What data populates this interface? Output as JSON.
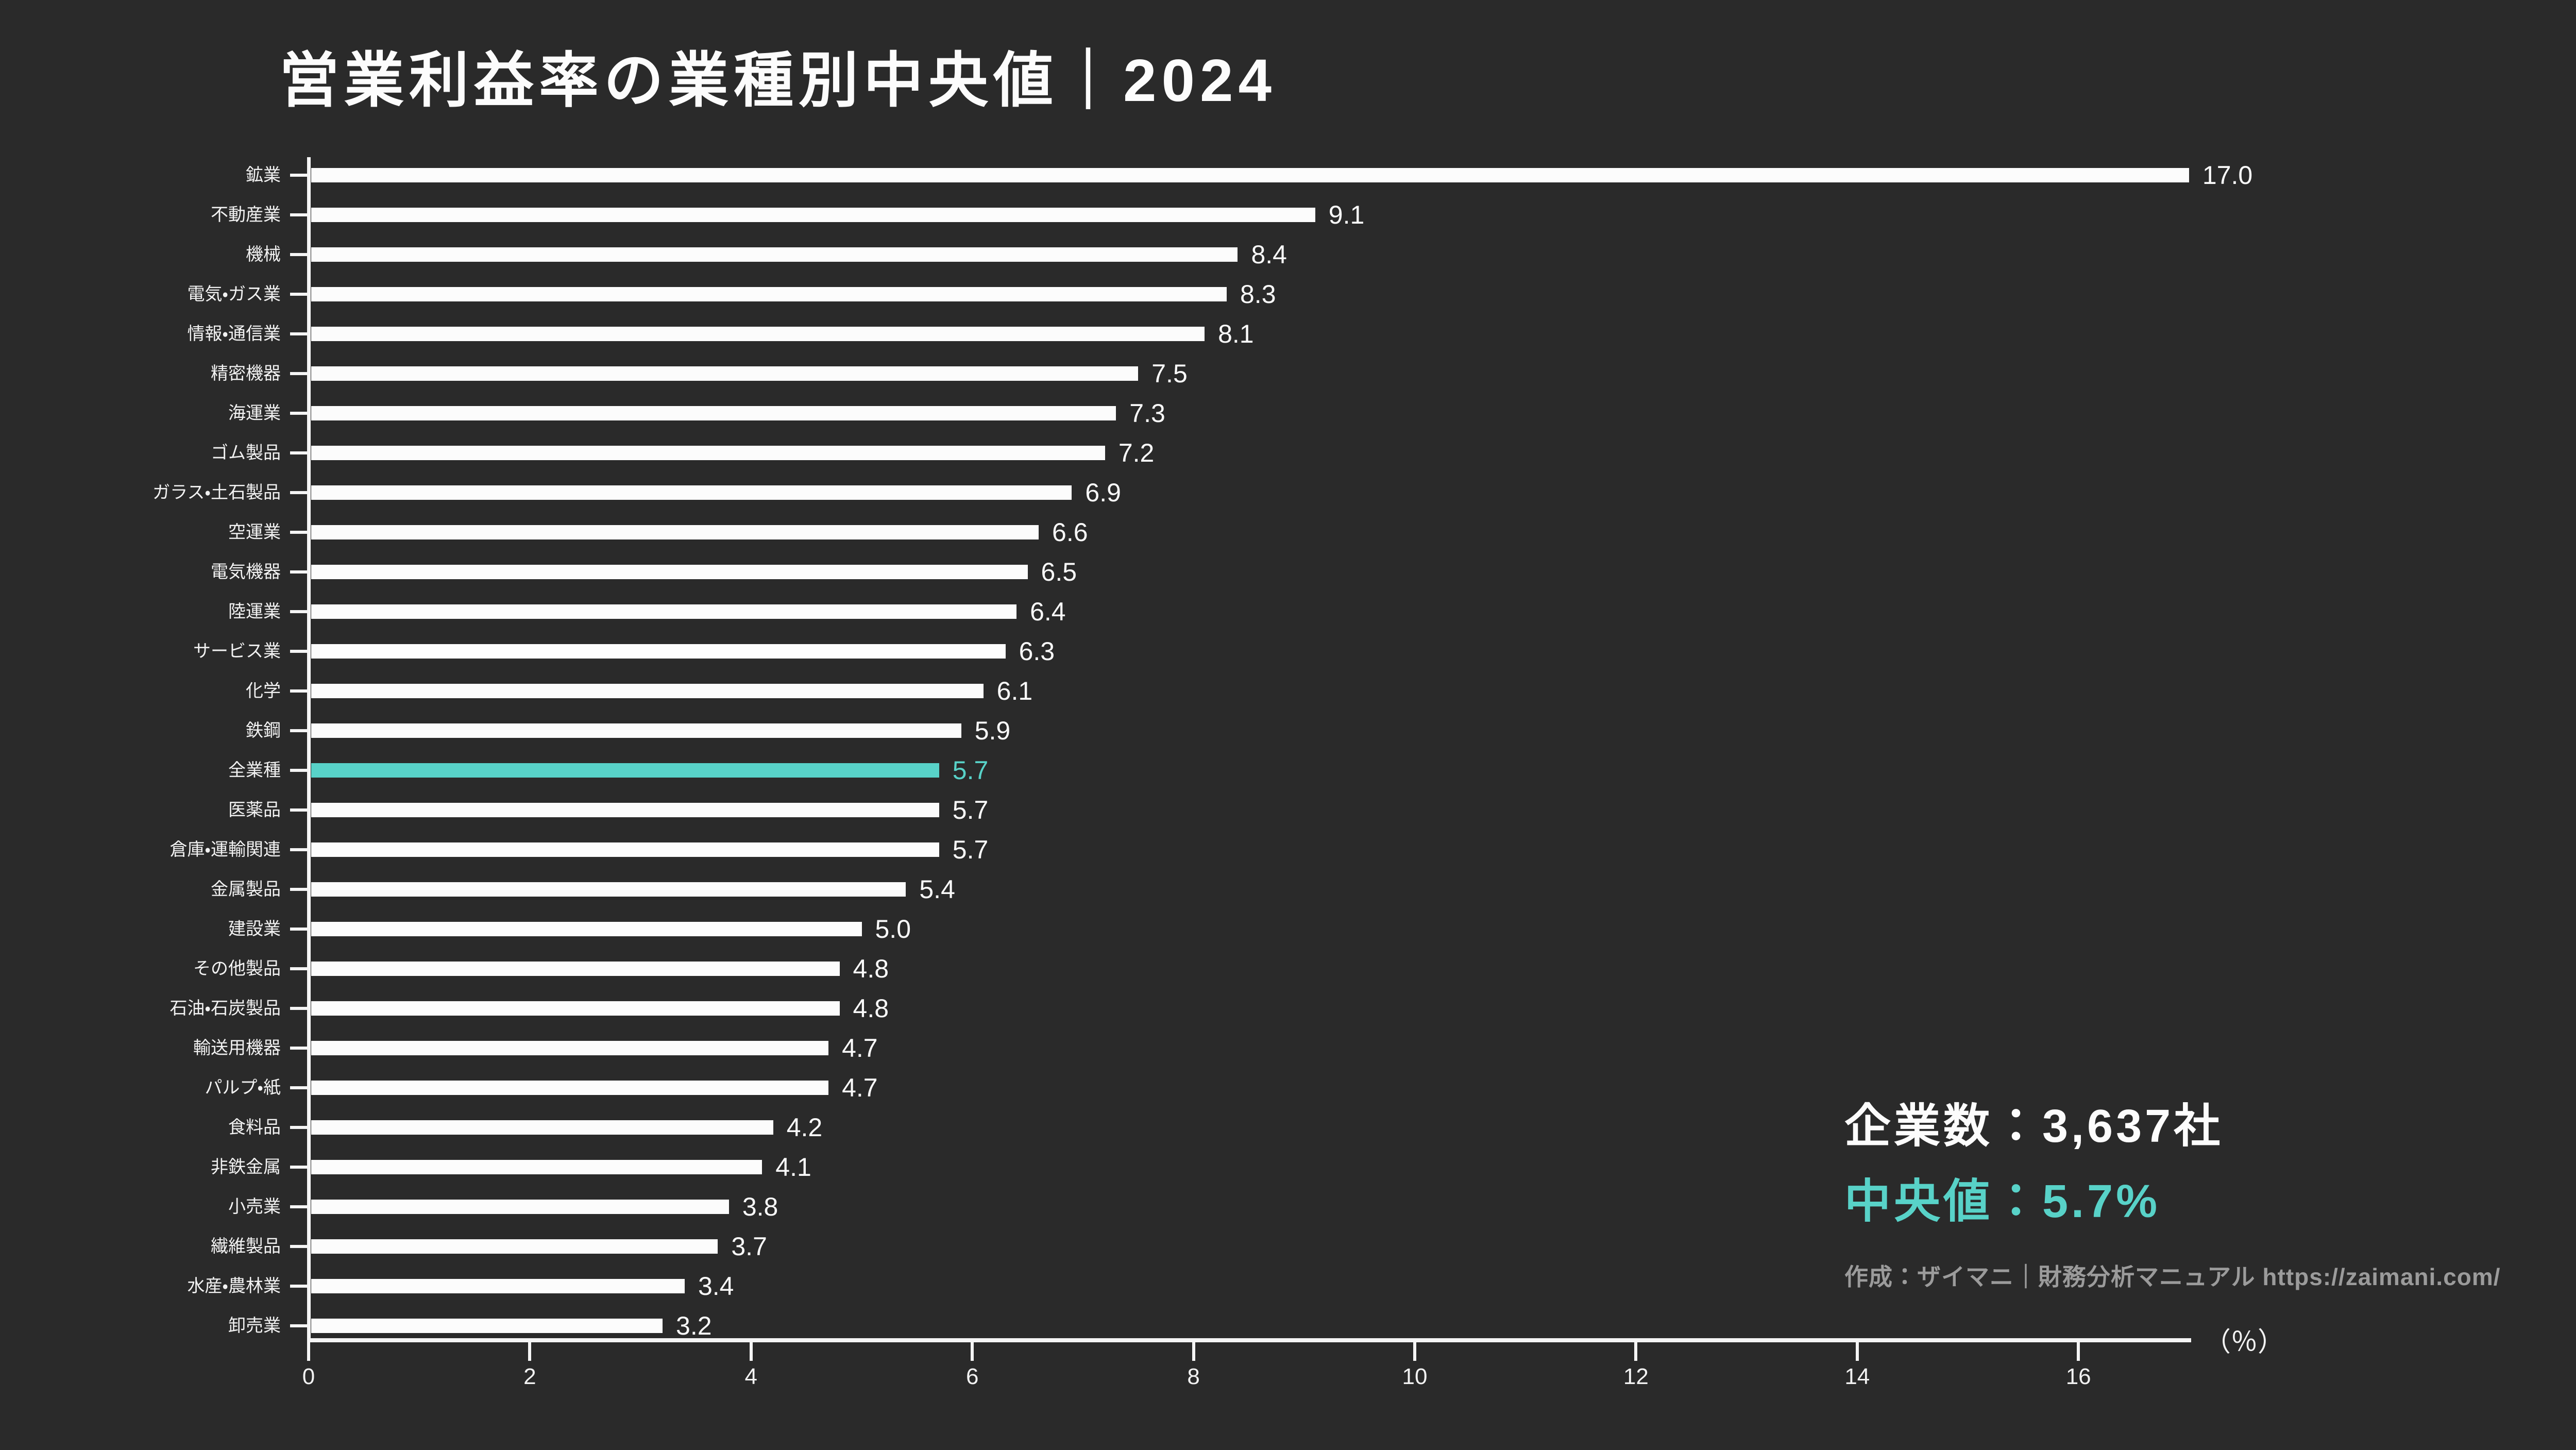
{
  "title": "営業利益率の業種別中央値｜2024",
  "chart_data": {
    "type": "bar",
    "orientation": "horizontal",
    "title": "営業利益率の業種別中央値｜2024",
    "xlabel": "（％）",
    "unit": "%",
    "xlim": [
      0,
      17
    ],
    "x_ticks": [
      0,
      2,
      4,
      6,
      8,
      10,
      12,
      14,
      16
    ],
    "grid": false,
    "highlight_category": "全業種",
    "categories": [
      "鉱業",
      "不動産業",
      "機械",
      "電気・ガス業",
      "情報・通信業",
      "精密機器",
      "海運業",
      "ゴム製品",
      "ガラス・土石製品",
      "空運業",
      "電気機器",
      "陸運業",
      "サービス業",
      "化学",
      "鉄鋼",
      "全業種",
      "医薬品",
      "倉庫・運輸関連",
      "金属製品",
      "建設業",
      "その他製品",
      "石油・石炭製品",
      "輸送用機器",
      "パルプ・紙",
      "食料品",
      "非鉄金属",
      "小売業",
      "繊維製品",
      "水産・農林業",
      "卸売業"
    ],
    "values": [
      17.0,
      9.1,
      8.4,
      8.3,
      8.1,
      7.5,
      7.3,
      7.2,
      6.9,
      6.6,
      6.5,
      6.4,
      6.3,
      6.1,
      5.9,
      5.7,
      5.7,
      5.7,
      5.4,
      5.0,
      4.8,
      4.8,
      4.7,
      4.7,
      4.2,
      4.1,
      3.8,
      3.7,
      3.4,
      3.2
    ]
  },
  "stats": {
    "companies_label": "企業数：3,637社",
    "median_label": "中央値：5.7%"
  },
  "attribution": "作成：ザイマニ｜財務分析マニュアル https://zaimani.com/",
  "colors": {
    "background": "#2A2A2A",
    "bar": "#FCFCFC",
    "highlight": "#58D2C8",
    "text": "#FFFFFF",
    "muted": "#9B9B9B"
  }
}
